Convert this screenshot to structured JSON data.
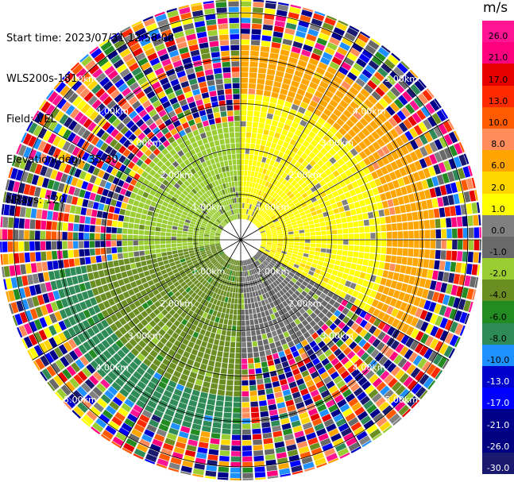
{
  "header": {
    "start_time": "Start time: 2023/07/31 12:58:08",
    "instrument": "WLS200s-181",
    "field": "Field: VEL",
    "elevation": "Elevation(deg): 35.30",
    "nrays": "NRays: 120"
  },
  "colorbar": {
    "unit": "m/s",
    "segments": [
      {
        "label": "26.0",
        "color": "#ff1493",
        "text_color": "#000000"
      },
      {
        "label": "21.0",
        "color": "#ff007f",
        "text_color": "#000000"
      },
      {
        "label": "17.0",
        "color": "#e60000",
        "text_color": "#000000"
      },
      {
        "label": "13.0",
        "color": "#ff2a00",
        "text_color": "#000000"
      },
      {
        "label": "10.0",
        "color": "#ff5a00",
        "text_color": "#000000"
      },
      {
        "label": "8.0",
        "color": "#ff8c5a",
        "text_color": "#000000"
      },
      {
        "label": "6.0",
        "color": "#ffa500",
        "text_color": "#000000"
      },
      {
        "label": "2.0",
        "color": "#ffd700",
        "text_color": "#000000"
      },
      {
        "label": "1.0",
        "color": "#ffff00",
        "text_color": "#000000"
      },
      {
        "label": "0.0",
        "color": "#808080",
        "text_color": "#000000"
      },
      {
        "label": "-1.0",
        "color": "#696969",
        "text_color": "#000000"
      },
      {
        "label": "-2.0",
        "color": "#9acd32",
        "text_color": "#000000"
      },
      {
        "label": "-4.0",
        "color": "#6b8e23",
        "text_color": "#000000"
      },
      {
        "label": "-6.0",
        "color": "#228b22",
        "text_color": "#000000"
      },
      {
        "label": "-8.0",
        "color": "#2e8b57",
        "text_color": "#000000"
      },
      {
        "label": "-10.0",
        "color": "#1e90ff",
        "text_color": "#000000"
      },
      {
        "label": "-13.0",
        "color": "#0000cd",
        "text_color": "#ffffff"
      },
      {
        "label": "-17.0",
        "color": "#0000ff",
        "text_color": "#ffffff"
      },
      {
        "label": "-21.0",
        "color": "#00008b",
        "text_color": "#ffffff"
      },
      {
        "label": "-26.0",
        "color": "#000080",
        "text_color": "#ffffff"
      },
      {
        "label": "-30.0",
        "color": "#191970",
        "text_color": "#ffffff"
      }
    ]
  },
  "chart_data": {
    "type": "heatmap",
    "projection": "polar",
    "title": "",
    "xlabel": "",
    "ylabel": "",
    "nrays": 120,
    "range_rings_km": [
      1.0,
      2.0,
      3.0,
      4.0,
      5.0
    ],
    "ring_labels": [
      "1.00km",
      "2.00km",
      "3.00km",
      "4.00km",
      "5.00km"
    ],
    "max_range_km": 5.3,
    "grid": true,
    "radial_lines_deg": [
      0,
      30,
      60,
      90,
      120,
      150,
      180,
      210,
      240,
      270,
      300,
      330
    ],
    "sectors": [
      {
        "az_from": 0,
        "az_to": 120,
        "r_from": 0.4,
        "r_to": 3.2,
        "value": 1.5
      },
      {
        "az_from": 0,
        "az_to": 120,
        "r_from": 3.2,
        "r_to": 4.3,
        "value": 7.0
      },
      {
        "az_from": 120,
        "az_to": 180,
        "r_from": 0.4,
        "r_to": 2.6,
        "value": -0.5
      },
      {
        "az_from": 180,
        "az_to": 260,
        "r_from": 0.4,
        "r_to": 3.4,
        "value": -3.0
      },
      {
        "az_from": 180,
        "az_to": 260,
        "r_from": 3.4,
        "r_to": 4.3,
        "value": -7.0
      },
      {
        "az_from": 260,
        "az_to": 360,
        "r_from": 0.4,
        "r_to": 2.6,
        "value": -1.5
      }
    ],
    "outer_region": "noise",
    "outer_region_from_km": 4.3
  }
}
